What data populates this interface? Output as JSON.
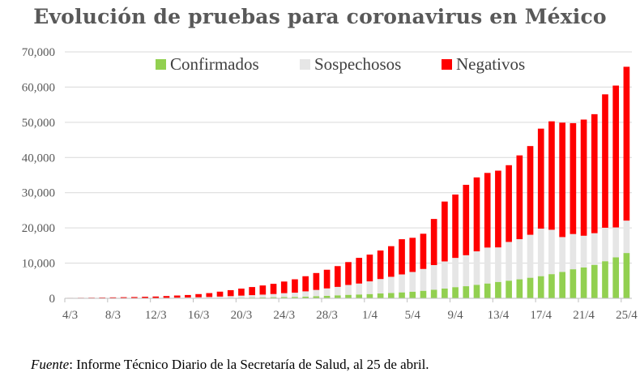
{
  "chart_data": {
    "type": "bar",
    "stacked": true,
    "title": "Evolución de pruebas para coronavirus en México",
    "xlabel": "",
    "ylabel": "",
    "ylim": [
      0,
      70000
    ],
    "yticks": [
      0,
      10000,
      20000,
      30000,
      40000,
      50000,
      60000,
      70000
    ],
    "ytick_labels": [
      "0",
      "10,000",
      "20,000",
      "30,000",
      "40,000",
      "50,000",
      "60,000",
      "70,000"
    ],
    "grid": true,
    "legend_position": "top",
    "categories": [
      "4/3",
      "5/3",
      "6/3",
      "7/3",
      "8/3",
      "9/3",
      "10/3",
      "11/3",
      "12/3",
      "13/3",
      "14/3",
      "15/3",
      "16/3",
      "17/3",
      "18/3",
      "19/3",
      "20/3",
      "21/3",
      "22/3",
      "23/3",
      "24/3",
      "25/3",
      "26/3",
      "27/3",
      "28/3",
      "29/3",
      "30/3",
      "31/3",
      "1/4",
      "2/4",
      "3/4",
      "4/4",
      "5/4",
      "6/4",
      "7/4",
      "8/4",
      "9/4",
      "10/4",
      "11/4",
      "12/4",
      "13/4",
      "14/4",
      "15/4",
      "16/4",
      "17/4",
      "18/4",
      "19/4",
      "20/4",
      "21/4",
      "22/4",
      "23/4",
      "24/4",
      "25/4"
    ],
    "xtick_labels_shown": [
      "4/3",
      "8/3",
      "12/3",
      "16/3",
      "20/3",
      "24/3",
      "28/3",
      "1/4",
      "5/4",
      "9/4",
      "13/4",
      "17/4",
      "21/4",
      "25/4"
    ],
    "series": [
      {
        "name": "Confirmados",
        "color": "#92d050",
        "values": [
          5,
          5,
          5,
          6,
          7,
          7,
          7,
          11,
          12,
          16,
          26,
          41,
          53,
          82,
          93,
          118,
          164,
          203,
          251,
          316,
          367,
          405,
          475,
          585,
          717,
          848,
          993,
          1094,
          1215,
          1378,
          1510,
          1688,
          1890,
          2143,
          2439,
          2785,
          3181,
          3441,
          3844,
          4219,
          4661,
          5014,
          5399,
          5847,
          6297,
          6875,
          7497,
          8261,
          8772,
          9501,
          10544,
          11633,
          12872
        ]
      },
      {
        "name": "Sospechosos",
        "color": "#e6e6e6",
        "values": [
          20,
          25,
          30,
          35,
          40,
          50,
          60,
          80,
          100,
          130,
          170,
          200,
          250,
          300,
          400,
          500,
          600,
          700,
          800,
          900,
          1100,
          1200,
          1500,
          1800,
          2100,
          2400,
          2800,
          3100,
          3600,
          4100,
          4600,
          5100,
          5600,
          6200,
          7000,
          7700,
          8300,
          8800,
          9500,
          10200,
          9800,
          11000,
          11400,
          12200,
          13500,
          12600,
          9900,
          10000,
          9000,
          9000,
          9500,
          8500,
          9200
        ]
      },
      {
        "name": "Negativos",
        "color": "#ff0000",
        "values": [
          100,
          120,
          150,
          180,
          220,
          260,
          300,
          350,
          400,
          500,
          600,
          700,
          900,
          1100,
          1400,
          1700,
          2000,
          2300,
          2600,
          2900,
          3300,
          3800,
          4300,
          4800,
          5300,
          5900,
          6500,
          7300,
          7600,
          8100,
          8700,
          10000,
          9700,
          10000,
          13100,
          17000,
          18000,
          20000,
          21000,
          21200,
          21800,
          21800,
          23800,
          25200,
          28400,
          30800,
          32500,
          31500,
          33000,
          33800,
          37900,
          40300,
          43700
        ]
      }
    ]
  },
  "source_note": {
    "label": "Fuente",
    "text": ": Informe Técnico Diario de la Secretaría de Salud, al 25 de abril."
  }
}
